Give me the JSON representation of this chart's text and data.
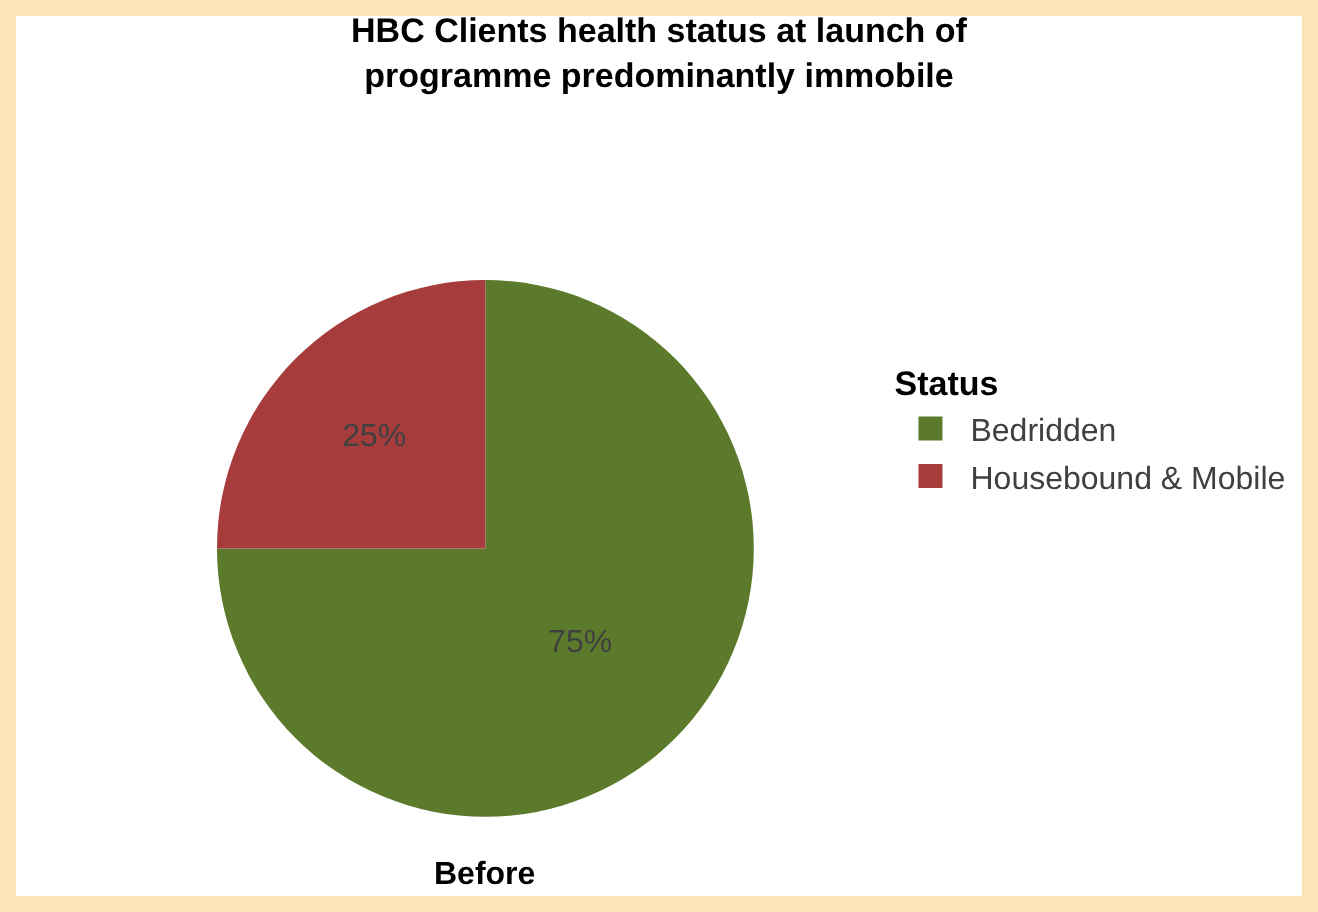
{
  "chart_data": {
    "type": "pie",
    "title": "HBC Clients health status at launch of programme predominantly immobile",
    "categories": [
      "Bedridden",
      "Housebound & Mobile"
    ],
    "values": [
      75,
      25
    ],
    "value_labels": [
      "75%",
      "25%"
    ],
    "colors": [
      "#5b7a2b",
      "#a63c3c"
    ],
    "legend_title": "Status",
    "legend": "right",
    "annotations": [
      "Before"
    ]
  }
}
